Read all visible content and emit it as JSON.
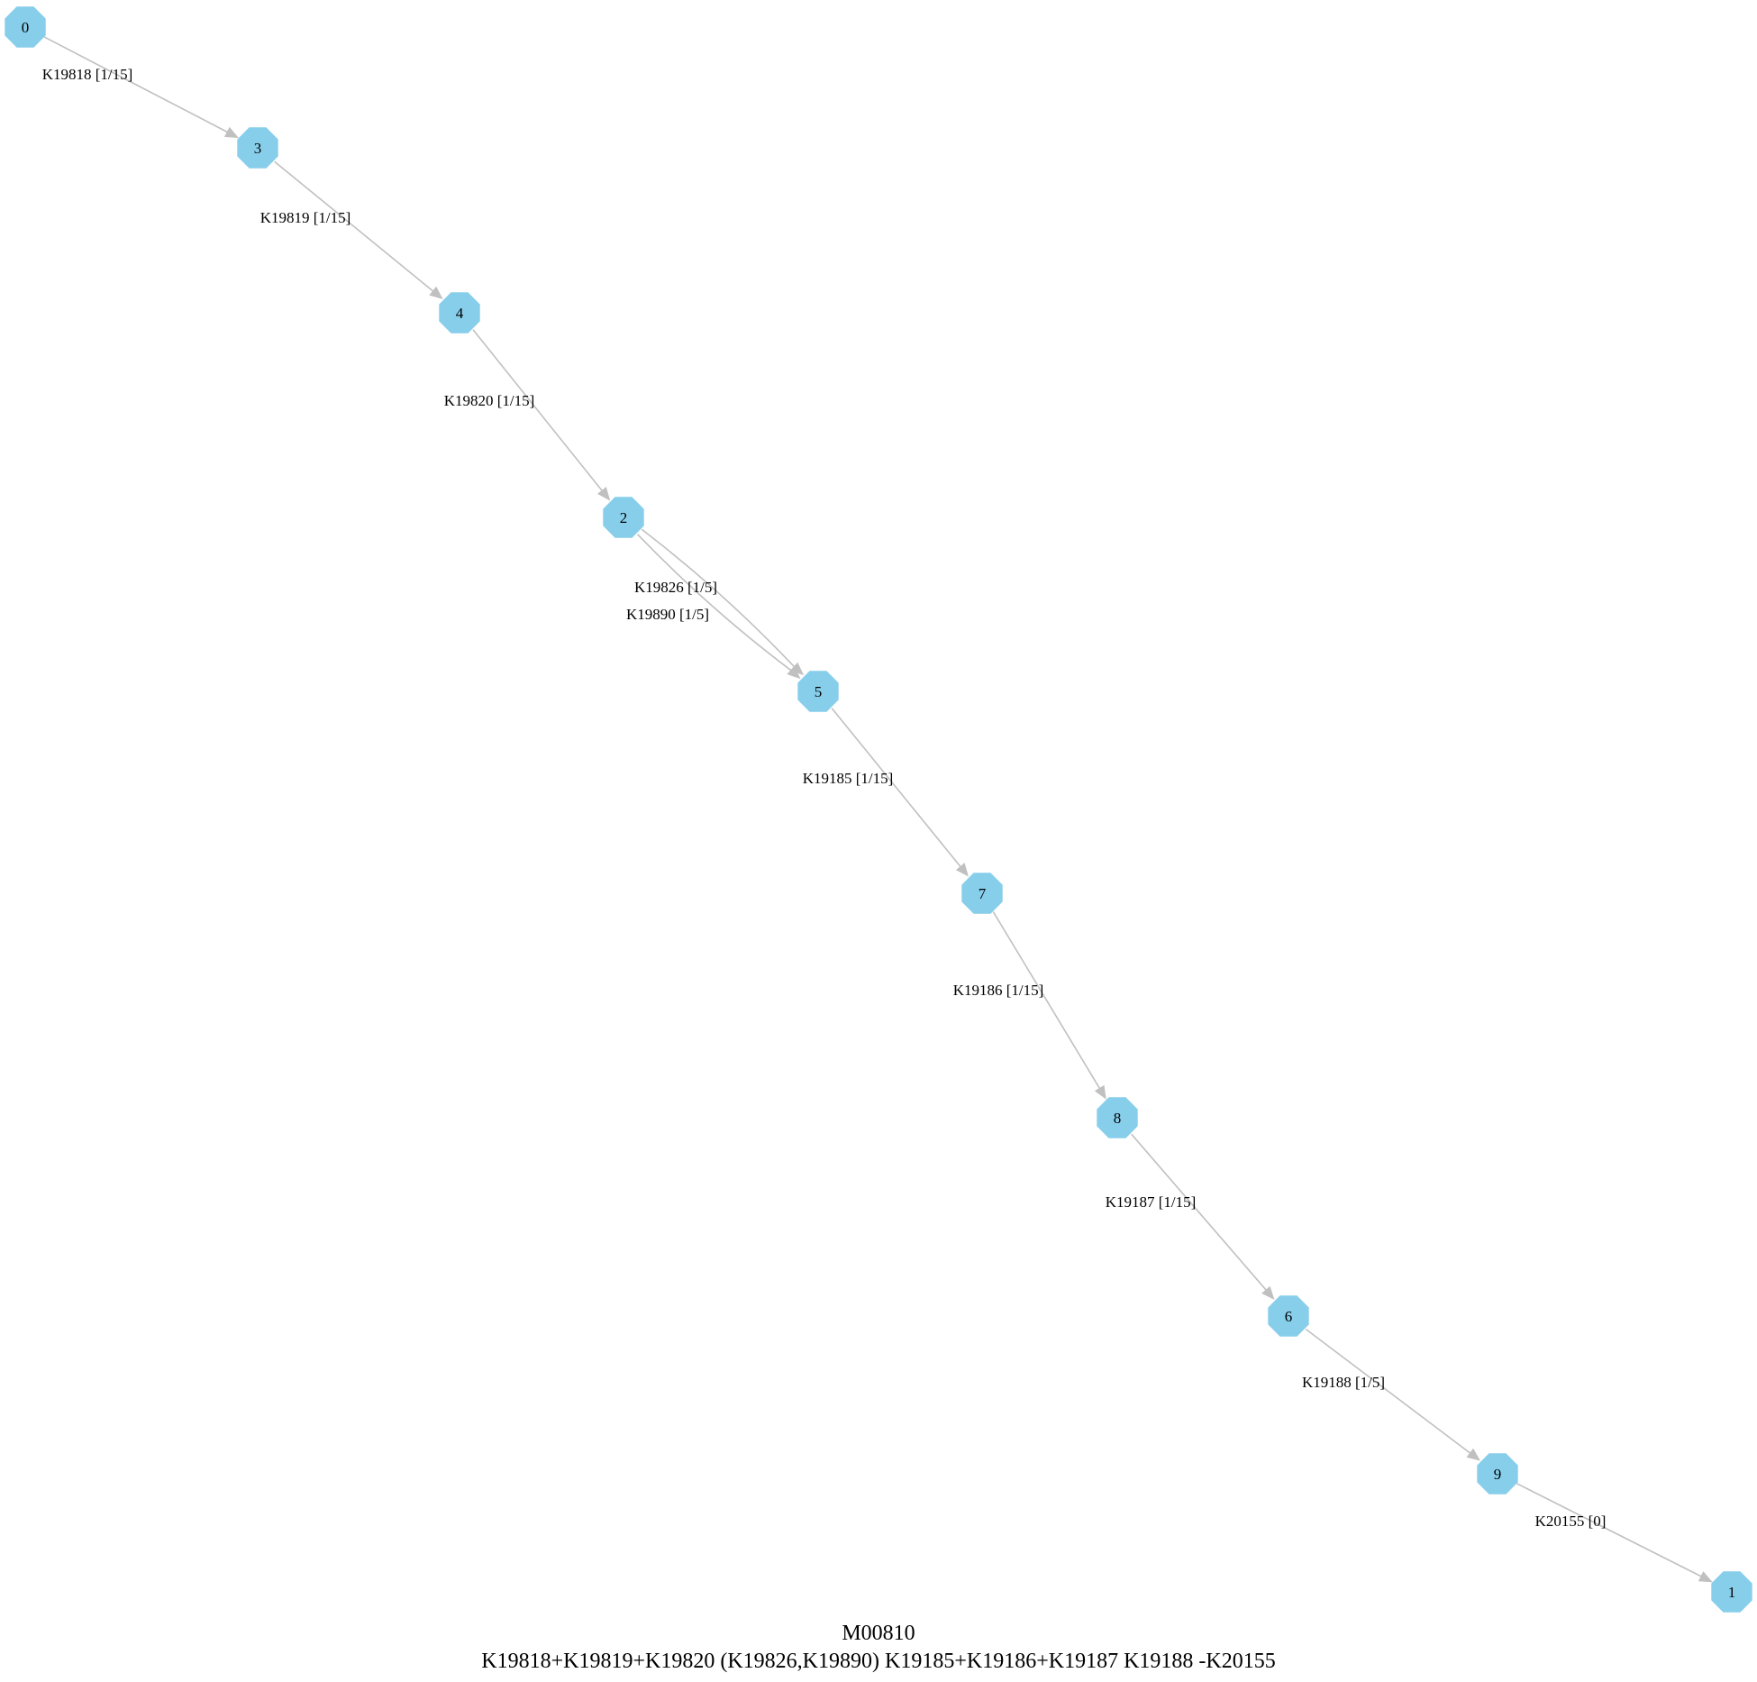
{
  "graph": {
    "id": "M00810",
    "definition": "K19818+K19819+K19820 (K19826,K19890) K19185+K19186+K19187 K19188 -K20155",
    "node_color": "#87ceeb",
    "edge_color": "#c0c0c0",
    "node_shape": "octagon",
    "nodes": [
      {
        "id": "0",
        "label": "0"
      },
      {
        "id": "3",
        "label": "3"
      },
      {
        "id": "4",
        "label": "4"
      },
      {
        "id": "2",
        "label": "2"
      },
      {
        "id": "5",
        "label": "5"
      },
      {
        "id": "7",
        "label": "7"
      },
      {
        "id": "8",
        "label": "8"
      },
      {
        "id": "6",
        "label": "6"
      },
      {
        "id": "9",
        "label": "9"
      },
      {
        "id": "1",
        "label": "1"
      }
    ],
    "edges": [
      {
        "from": "0",
        "to": "3",
        "label": "K19818 [1/15]"
      },
      {
        "from": "3",
        "to": "4",
        "label": "K19819 [1/15]"
      },
      {
        "from": "4",
        "to": "2",
        "label": "K19820 [1/15]"
      },
      {
        "from": "2",
        "to": "5",
        "label": "K19826 [1/5]"
      },
      {
        "from": "2",
        "to": "5",
        "label": "K19890 [1/5]"
      },
      {
        "from": "5",
        "to": "7",
        "label": "K19185 [1/15]"
      },
      {
        "from": "7",
        "to": "8",
        "label": "K19186 [1/15]"
      },
      {
        "from": "8",
        "to": "6",
        "label": "K19187 [1/15]"
      },
      {
        "from": "6",
        "to": "9",
        "label": "K19188 [1/5]"
      },
      {
        "from": "9",
        "to": "1",
        "label": "K20155 [0]"
      }
    ]
  }
}
